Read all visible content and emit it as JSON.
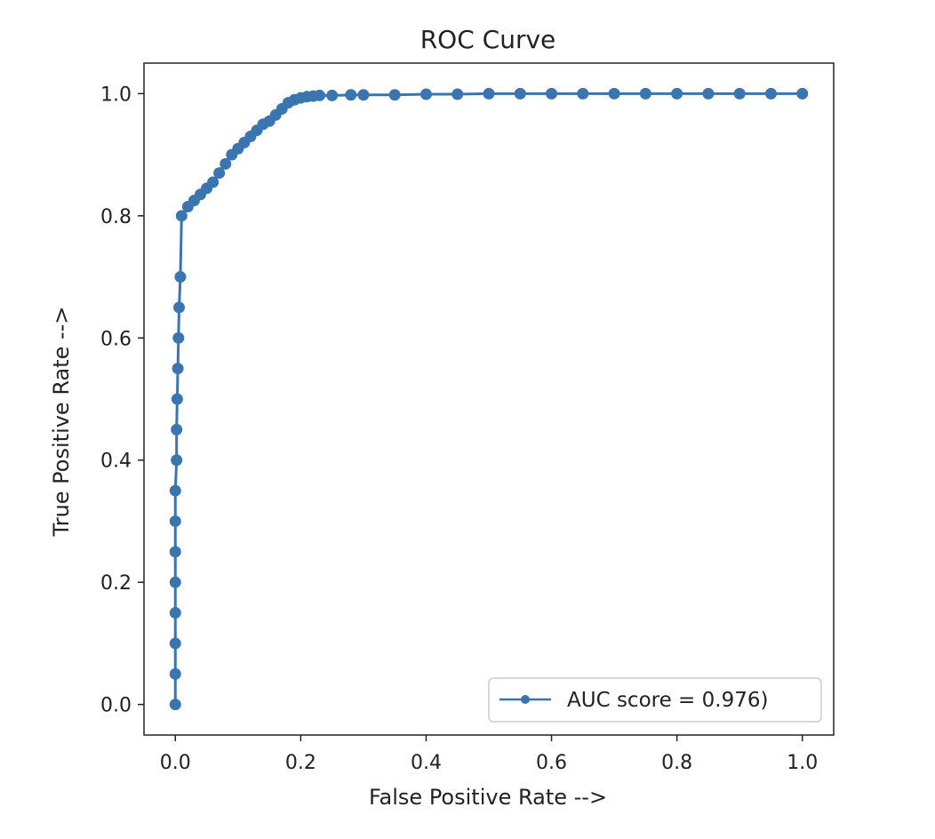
{
  "chart_data": {
    "type": "line",
    "title": "ROC Curve",
    "xlabel": "False Positive Rate -->",
    "ylabel": "True Positive Rate -->",
    "xlim": [
      -0.05,
      1.05
    ],
    "ylim": [
      -0.05,
      1.05
    ],
    "xticks": [
      "0.0",
      "0.2",
      "0.4",
      "0.6",
      "0.8",
      "1.0"
    ],
    "yticks": [
      "0.0",
      "0.2",
      "0.4",
      "0.6",
      "0.8",
      "1.0"
    ],
    "grid": false,
    "legend_position": "lower-right",
    "series": [
      {
        "name": "AUC score = 0.976)",
        "color": "#3a75b0",
        "marker": "circle",
        "x": [
          0.0,
          0.0,
          0.0,
          0.0,
          0.0,
          0.0,
          0.0,
          0.0,
          0.002,
          0.002,
          0.003,
          0.004,
          0.005,
          0.006,
          0.008,
          0.01,
          0.02,
          0.03,
          0.04,
          0.05,
          0.06,
          0.07,
          0.08,
          0.09,
          0.1,
          0.11,
          0.12,
          0.13,
          0.14,
          0.15,
          0.16,
          0.17,
          0.18,
          0.19,
          0.2,
          0.21,
          0.22,
          0.23,
          0.25,
          0.28,
          0.3,
          0.35,
          0.4,
          0.45,
          0.5,
          0.55,
          0.6,
          0.65,
          0.7,
          0.75,
          0.8,
          0.85,
          0.9,
          0.95,
          1.0
        ],
        "y": [
          0.0,
          0.05,
          0.1,
          0.15,
          0.2,
          0.25,
          0.3,
          0.35,
          0.4,
          0.45,
          0.5,
          0.55,
          0.6,
          0.65,
          0.7,
          0.8,
          0.815,
          0.825,
          0.835,
          0.845,
          0.855,
          0.87,
          0.885,
          0.9,
          0.91,
          0.92,
          0.93,
          0.94,
          0.95,
          0.955,
          0.965,
          0.975,
          0.985,
          0.99,
          0.993,
          0.995,
          0.996,
          0.997,
          0.997,
          0.998,
          0.998,
          0.998,
          0.999,
          0.999,
          1.0,
          1.0,
          1.0,
          1.0,
          1.0,
          1.0,
          1.0,
          1.0,
          1.0,
          1.0,
          1.0
        ]
      }
    ]
  }
}
